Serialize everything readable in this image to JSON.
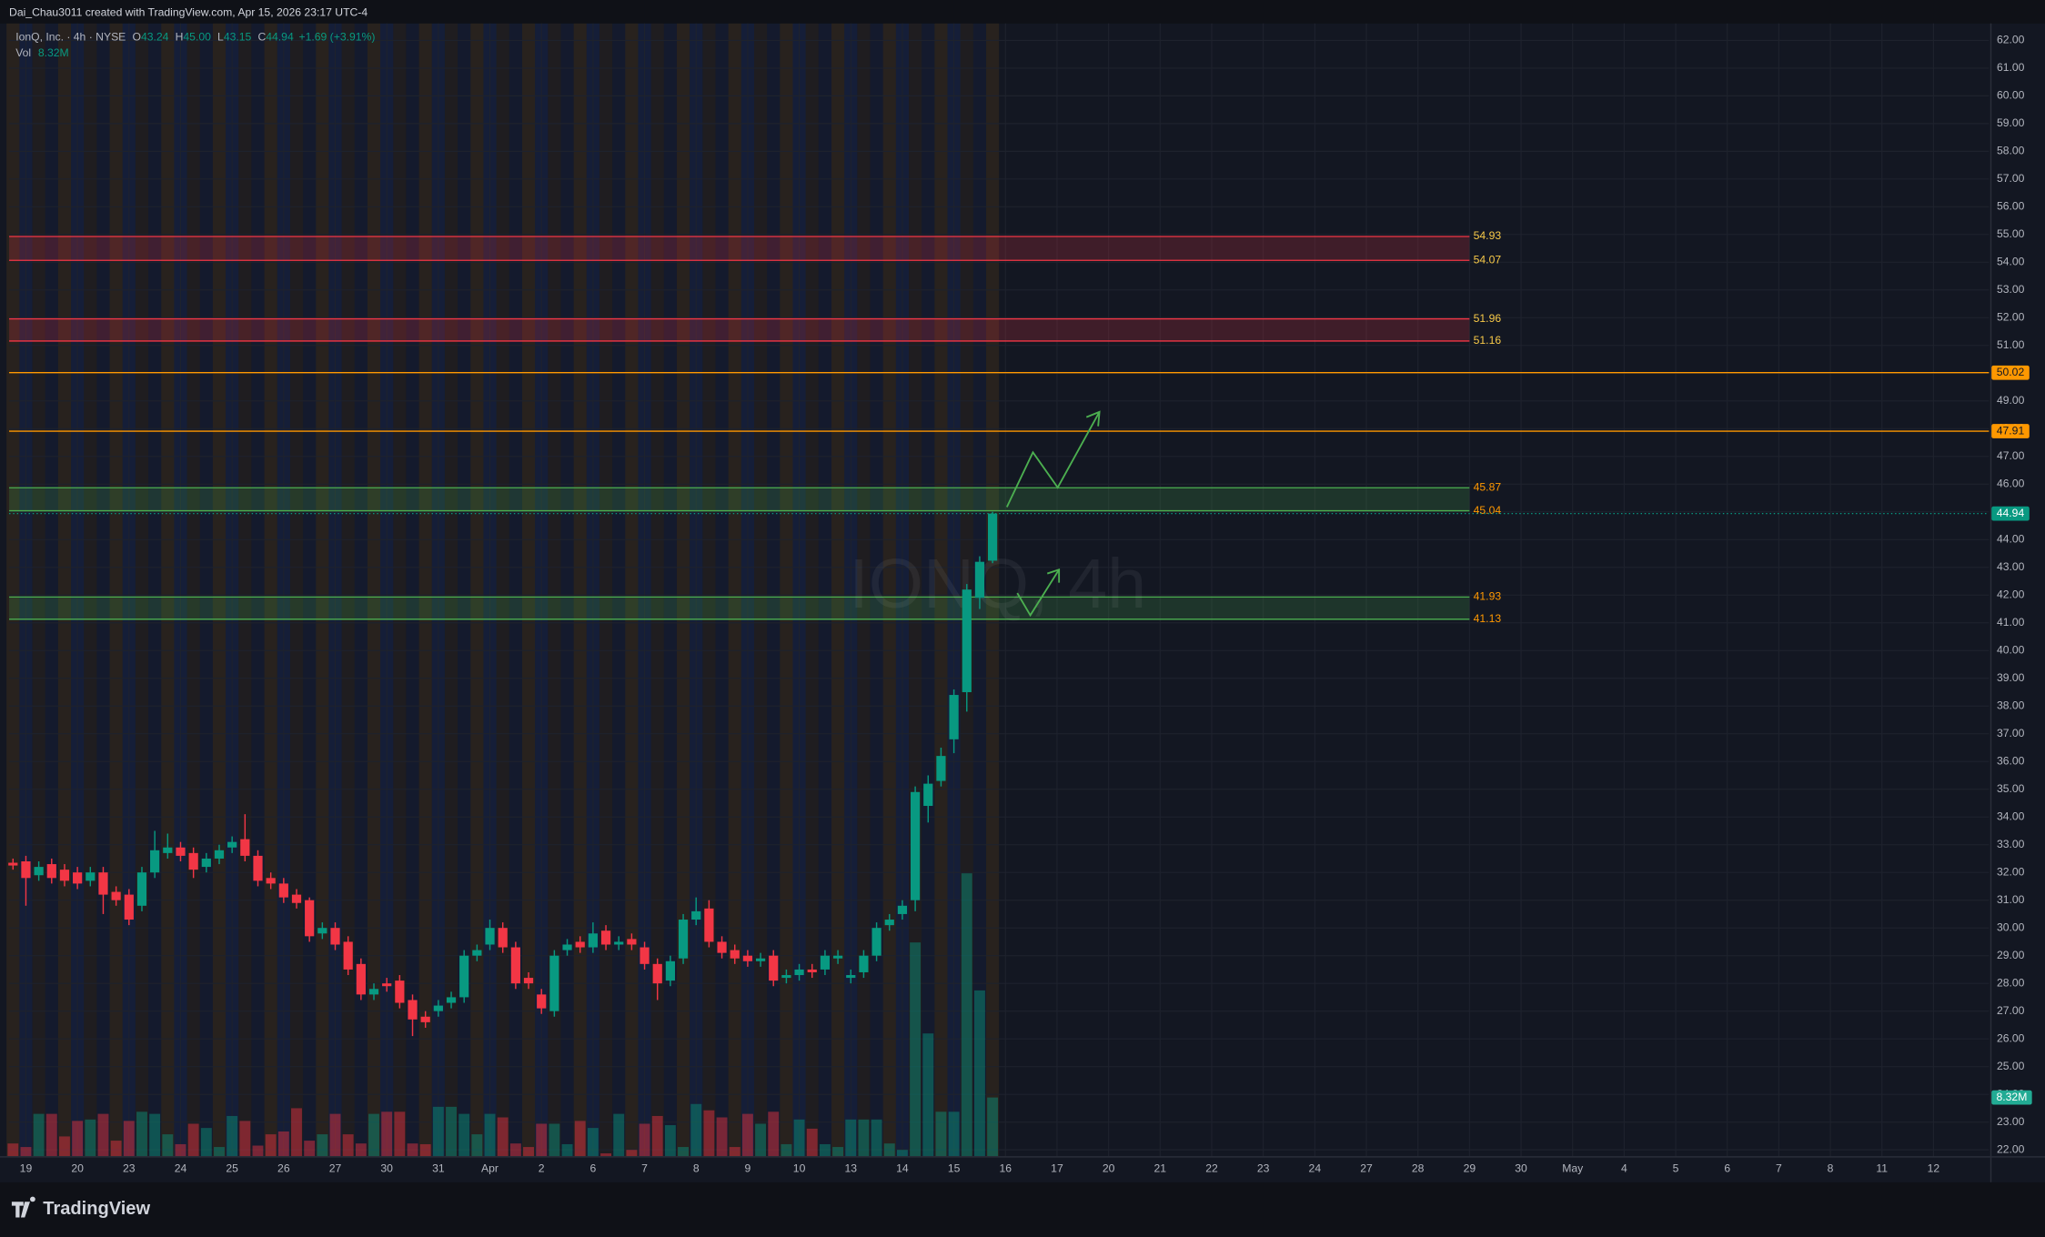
{
  "header": {
    "credit": "Dai_Chau3011 created with TradingView.com, Apr 15, 2026 23:17 UTC-4"
  },
  "footer": {
    "brand": "TradingView"
  },
  "chart_data": {
    "type": "candlestick",
    "title": "IonQ, Inc. · 4h · NYSE",
    "watermark": "IONQ, 4h",
    "legend_items": [
      {
        "key": "O",
        "text": "43.24"
      },
      {
        "key": "H",
        "text": "45.00"
      },
      {
        "key": "L",
        "text": "43.15"
      },
      {
        "key": "C",
        "text": "44.94"
      }
    ],
    "change": "+1.69 (+3.91%)",
    "vol_label": "Vol",
    "vol_text": "8.32M",
    "up_color": "#089981",
    "down_color": "#f23645",
    "open": [
      32.35,
      32.4,
      31.9,
      32.3,
      32.1,
      32.0,
      31.7,
      32.0,
      31.3,
      31.2,
      30.8,
      32.0,
      32.7,
      32.9,
      32.7,
      32.2,
      32.5,
      32.9,
      33.2,
      32.6,
      31.8,
      31.6,
      31.2,
      31.0,
      29.8,
      30.0,
      29.5,
      28.7,
      27.6,
      28.0,
      28.1,
      27.4,
      26.8,
      27.0,
      27.3,
      27.5,
      29.0,
      29.4,
      30.0,
      29.3,
      28.2,
      27.6,
      27.0,
      29.2,
      29.5,
      29.3,
      29.9,
      29.4,
      29.6,
      29.3,
      28.7,
      28.1,
      28.9,
      30.3,
      30.7,
      29.5,
      29.2,
      29.0,
      28.8,
      29.0,
      28.2,
      28.3,
      28.5,
      28.5,
      28.9,
      28.2,
      28.4,
      29.0,
      30.1,
      30.5,
      31.0,
      34.4,
      35.3,
      36.8,
      38.5,
      41.9,
      43.24
    ],
    "high": [
      32.5,
      32.6,
      32.4,
      32.5,
      32.3,
      32.2,
      32.2,
      32.2,
      31.5,
      31.4,
      32.2,
      33.5,
      33.4,
      33.1,
      32.9,
      32.7,
      33.0,
      33.3,
      34.1,
      32.8,
      32.0,
      31.8,
      31.4,
      31.1,
      30.2,
      30.2,
      29.7,
      28.9,
      28.0,
      28.2,
      28.3,
      27.6,
      27.0,
      27.4,
      27.7,
      29.2,
      29.4,
      30.3,
      30.2,
      29.5,
      28.4,
      27.8,
      29.2,
      29.6,
      29.7,
      30.2,
      30.1,
      29.7,
      29.8,
      29.5,
      28.9,
      29.0,
      30.5,
      31.1,
      31.0,
      29.7,
      29.4,
      29.2,
      29.1,
      29.2,
      28.5,
      28.7,
      28.7,
      29.2,
      29.2,
      28.5,
      29.2,
      30.2,
      30.5,
      31.0,
      35.1,
      35.5,
      36.5,
      38.6,
      42.4,
      43.4,
      45.0
    ],
    "low": [
      32.1,
      30.8,
      31.7,
      31.6,
      31.5,
      31.4,
      31.5,
      30.5,
      30.8,
      30.1,
      30.6,
      31.8,
      32.5,
      32.4,
      31.8,
      32.0,
      32.3,
      32.7,
      32.4,
      31.5,
      31.4,
      30.9,
      30.7,
      29.5,
      29.6,
      29.2,
      28.3,
      27.4,
      27.4,
      27.7,
      27.1,
      26.1,
      26.4,
      26.8,
      27.1,
      27.3,
      28.8,
      29.2,
      29.1,
      27.8,
      27.8,
      26.9,
      26.8,
      29.0,
      29.1,
      29.1,
      29.2,
      29.2,
      29.2,
      28.5,
      27.4,
      27.9,
      28.7,
      30.1,
      29.3,
      28.9,
      28.7,
      28.6,
      28.6,
      27.9,
      28.0,
      28.1,
      28.2,
      28.3,
      28.7,
      28.0,
      28.2,
      28.8,
      29.9,
      30.3,
      30.6,
      33.8,
      35.1,
      36.3,
      37.8,
      41.5,
      43.15
    ],
    "close": [
      32.25,
      31.8,
      32.2,
      31.8,
      31.7,
      31.6,
      32.0,
      31.2,
      31.0,
      30.3,
      32.0,
      32.8,
      32.9,
      32.6,
      32.1,
      32.5,
      32.8,
      33.1,
      32.6,
      31.7,
      31.6,
      31.1,
      30.9,
      29.7,
      30.0,
      29.4,
      28.5,
      27.6,
      27.8,
      27.9,
      27.3,
      26.7,
      26.6,
      27.2,
      27.5,
      29.0,
      29.2,
      30.0,
      29.3,
      28.0,
      28.0,
      27.1,
      29.0,
      29.4,
      29.3,
      29.8,
      29.4,
      29.5,
      29.4,
      28.7,
      28.0,
      28.8,
      30.3,
      30.6,
      29.5,
      29.1,
      28.9,
      28.8,
      28.9,
      28.1,
      28.3,
      28.5,
      28.4,
      29.0,
      29.0,
      28.3,
      29.0,
      30.0,
      30.3,
      30.8,
      34.9,
      35.2,
      36.2,
      38.4,
      42.2,
      43.2,
      44.94
    ],
    "volume": {
      "values": [
        1.8,
        1.3,
        6.0,
        6.0,
        2.8,
        5.0,
        5.2,
        6.0,
        2.2,
        5.0,
        6.3,
        6.0,
        3.1,
        1.7,
        4.6,
        4.0,
        1.3,
        5.7,
        5.0,
        1.5,
        3.1,
        3.5,
        6.8,
        2.2,
        3.1,
        6.0,
        3.1,
        1.8,
        6.0,
        6.3,
        6.3,
        1.8,
        1.7,
        7.0,
        7.0,
        6.0,
        3.1,
        6.0,
        5.5,
        1.8,
        1.3,
        4.6,
        4.6,
        1.7,
        5.0,
        4.0,
        0.4,
        6.0,
        0.9,
        4.6,
        5.7,
        4.4,
        1.3,
        7.4,
        6.5,
        5.5,
        1.3,
        6.0,
        4.6,
        6.3,
        1.7,
        5.2,
        3.9,
        1.7,
        1.3,
        5.2,
        5.2,
        5.2,
        1.8,
        0.9,
        30.3,
        17.4,
        6.3,
        6.3,
        40.1,
        23.5,
        8.32
      ],
      "last_label": "8.32M"
    },
    "xlim": [
      -0.3,
      153.3
    ],
    "xticks": [
      {
        "value": 1,
        "label": "19"
      },
      {
        "value": 5,
        "label": "20"
      },
      {
        "value": 9,
        "label": "23"
      },
      {
        "value": 13,
        "label": "24"
      },
      {
        "value": 17,
        "label": "25"
      },
      {
        "value": 21,
        "label": "26"
      },
      {
        "value": 25,
        "label": "27"
      },
      {
        "value": 29,
        "label": "30"
      },
      {
        "value": 33,
        "label": "31"
      },
      {
        "value": 37,
        "label": "Apr"
      },
      {
        "value": 41,
        "label": "2"
      },
      {
        "value": 45,
        "label": "6"
      },
      {
        "value": 49,
        "label": "7"
      },
      {
        "value": 53,
        "label": "8"
      },
      {
        "value": 57,
        "label": "9"
      },
      {
        "value": 61,
        "label": "10"
      },
      {
        "value": 65,
        "label": "13"
      },
      {
        "value": 69,
        "label": "14"
      },
      {
        "value": 73,
        "label": "15"
      },
      {
        "value": 77,
        "label": "16"
      },
      {
        "value": 81,
        "label": "17"
      },
      {
        "value": 85,
        "label": "20"
      },
      {
        "value": 89,
        "label": "21"
      },
      {
        "value": 93,
        "label": "22"
      },
      {
        "value": 97,
        "label": "23"
      },
      {
        "value": 101,
        "label": "24"
      },
      {
        "value": 105,
        "label": "27"
      },
      {
        "value": 109,
        "label": "28"
      },
      {
        "value": 113,
        "label": "29"
      },
      {
        "value": 117,
        "label": "30"
      },
      {
        "value": 121,
        "label": "May"
      },
      {
        "value": 125,
        "label": "4"
      },
      {
        "value": 129,
        "label": "5"
      },
      {
        "value": 133,
        "label": "6"
      },
      {
        "value": 137,
        "label": "7"
      },
      {
        "value": 141,
        "label": "8"
      },
      {
        "value": 145,
        "label": "11"
      },
      {
        "value": 149,
        "label": "12"
      }
    ],
    "ylim": [
      21.77,
      62.61
    ],
    "yticks": [
      {
        "value": 22,
        "label": "22.00"
      },
      {
        "value": 23,
        "label": "23.00"
      },
      {
        "value": 24,
        "label": "24.00"
      },
      {
        "value": 25,
        "label": "25.00"
      },
      {
        "value": 26,
        "label": "26.00"
      },
      {
        "value": 27,
        "label": "27.00"
      },
      {
        "value": 28,
        "label": "28.00"
      },
      {
        "value": 29,
        "label": "29.00"
      },
      {
        "value": 30,
        "label": "30.00"
      },
      {
        "value": 31,
        "label": "31.00"
      },
      {
        "value": 32,
        "label": "32.00"
      },
      {
        "value": 33,
        "label": "33.00"
      },
      {
        "value": 34,
        "label": "34.00"
      },
      {
        "value": 35,
        "label": "35.00"
      },
      {
        "value": 36,
        "label": "36.00"
      },
      {
        "value": 37,
        "label": "37.00"
      },
      {
        "value": 38,
        "label": "38.00"
      },
      {
        "value": 39,
        "label": "39.00"
      },
      {
        "value": 40,
        "label": "40.00"
      },
      {
        "value": 41,
        "label": "41.00"
      },
      {
        "value": 42,
        "label": "42.00"
      },
      {
        "value": 43,
        "label": "43.00"
      },
      {
        "value": 44,
        "label": "44.00"
      },
      {
        "value": 45,
        "label": "45.00"
      },
      {
        "value": 46,
        "label": "46.00"
      },
      {
        "value": 47,
        "label": "47.00"
      },
      {
        "value": 48,
        "label": "48.00"
      },
      {
        "value": 49,
        "label": "49.00"
      },
      {
        "value": 50,
        "label": "50.00"
      },
      {
        "value": 51,
        "label": "51.00"
      },
      {
        "value": 52,
        "label": "52.00"
      },
      {
        "value": 53,
        "label": "53.00"
      },
      {
        "value": 54,
        "label": "54.00"
      },
      {
        "value": 55,
        "label": "55.00"
      },
      {
        "value": 56,
        "label": "56.00"
      },
      {
        "value": 57,
        "label": "57.00"
      },
      {
        "value": 58,
        "label": "58.00"
      },
      {
        "value": 59,
        "label": "59.00"
      },
      {
        "value": 60,
        "label": "60.00"
      },
      {
        "value": 61,
        "label": "61.00"
      },
      {
        "value": 62,
        "label": "62.00"
      }
    ],
    "grid": true,
    "zones": [
      {
        "low": 54.07,
        "high": 54.93,
        "x_end": 113,
        "color": "#f23645",
        "label_color": "#f7c948"
      },
      {
        "low": 51.16,
        "high": 51.96,
        "x_end": 113,
        "color": "#f23645",
        "label_color": "#f7c948"
      },
      {
        "low": 45.04,
        "high": 45.87,
        "x_end": 113,
        "color": "#4caf50",
        "label_color": "#ff9800"
      },
      {
        "low": 41.13,
        "high": 41.93,
        "x_end": 113,
        "color": "#4caf50",
        "label_color": "#ff9800"
      }
    ],
    "levels": [
      {
        "value": 50.02,
        "color": "#ff9800"
      },
      {
        "value": 47.91,
        "color": "#ff9800"
      }
    ],
    "last_price": 44.94
  }
}
